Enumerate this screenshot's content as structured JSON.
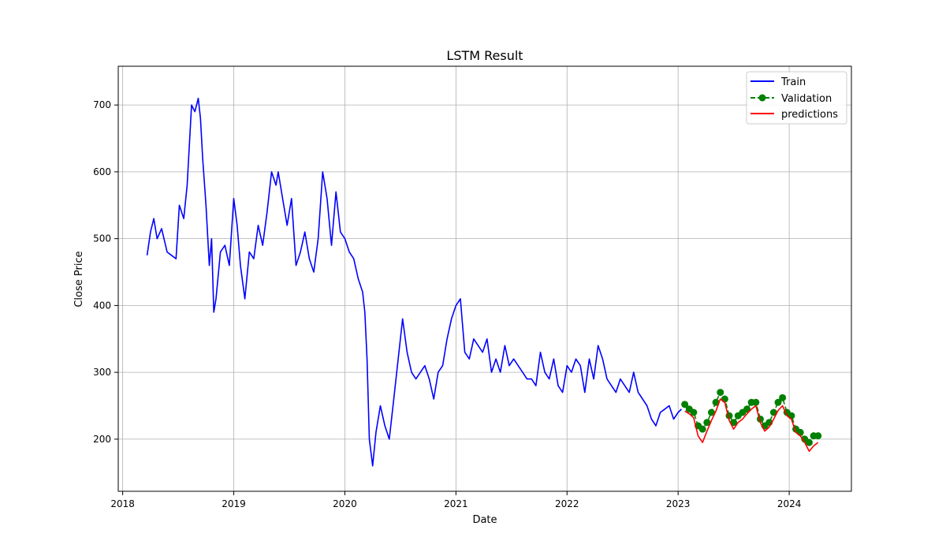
{
  "chart_data": {
    "type": "line",
    "title": "LSTM Result",
    "xlabel": "Date",
    "ylabel": "Close Price",
    "grid": true,
    "legend_placement": "top-right",
    "xlim": [
      2017.96,
      2024.56
    ],
    "ylim": [
      122,
      758
    ],
    "xticks": [
      2018,
      2019,
      2020,
      2021,
      2022,
      2023,
      2024
    ],
    "xtick_labels": [
      "2018",
      "2019",
      "2020",
      "2021",
      "2022",
      "2023",
      "2024"
    ],
    "yticks": [
      200,
      300,
      400,
      500,
      600,
      700
    ],
    "ytick_labels": [
      "200",
      "300",
      "400",
      "500",
      "600",
      "700"
    ],
    "series": [
      {
        "name": "Train",
        "color": "#0000ff",
        "style": "solid",
        "marker": "none",
        "x": [
          2018.22,
          2018.25,
          2018.28,
          2018.31,
          2018.35,
          2018.4,
          2018.44,
          2018.48,
          2018.51,
          2018.55,
          2018.58,
          2018.62,
          2018.65,
          2018.68,
          2018.7,
          2018.72,
          2018.75,
          2018.78,
          2018.8,
          2018.82,
          2018.84,
          2018.88,
          2018.92,
          2018.96,
          2019.0,
          2019.03,
          2019.06,
          2019.1,
          2019.14,
          2019.18,
          2019.22,
          2019.26,
          2019.3,
          2019.34,
          2019.38,
          2019.4,
          2019.44,
          2019.48,
          2019.52,
          2019.56,
          2019.6,
          2019.64,
          2019.68,
          2019.72,
          2019.76,
          2019.8,
          2019.84,
          2019.88,
          2019.92,
          2019.96,
          2020.0,
          2020.04,
          2020.08,
          2020.12,
          2020.16,
          2020.18,
          2020.2,
          2020.22,
          2020.25,
          2020.28,
          2020.32,
          2020.36,
          2020.4,
          2020.44,
          2020.48,
          2020.52,
          2020.56,
          2020.6,
          2020.64,
          2020.68,
          2020.72,
          2020.76,
          2020.8,
          2020.84,
          2020.88,
          2020.92,
          2020.96,
          2021.0,
          2021.04,
          2021.08,
          2021.12,
          2021.16,
          2021.2,
          2021.24,
          2021.28,
          2021.32,
          2021.36,
          2021.4,
          2021.44,
          2021.48,
          2021.52,
          2021.56,
          2021.6,
          2021.64,
          2021.68,
          2021.72,
          2021.76,
          2021.8,
          2021.84,
          2021.88,
          2021.92,
          2021.96,
          2022.0,
          2022.04,
          2022.08,
          2022.12,
          2022.16,
          2022.2,
          2022.24,
          2022.28,
          2022.32,
          2022.36,
          2022.4,
          2022.44,
          2022.48,
          2022.52,
          2022.56,
          2022.6,
          2022.64,
          2022.68,
          2022.72,
          2022.76,
          2022.8,
          2022.84,
          2022.88,
          2022.92,
          2022.96,
          2023.0,
          2023.03
        ],
        "y": [
          475,
          510,
          530,
          500,
          515,
          480,
          475,
          470,
          550,
          530,
          580,
          700,
          690,
          710,
          680,
          620,
          550,
          460,
          500,
          390,
          410,
          480,
          490,
          460,
          560,
          520,
          460,
          410,
          480,
          470,
          520,
          490,
          540,
          600,
          580,
          600,
          560,
          520,
          560,
          460,
          480,
          510,
          470,
          450,
          500,
          600,
          560,
          490,
          570,
          510,
          500,
          480,
          470,
          440,
          420,
          390,
          320,
          200,
          160,
          210,
          250,
          220,
          200,
          260,
          320,
          380,
          330,
          300,
          290,
          300,
          310,
          290,
          260,
          300,
          310,
          350,
          380,
          400,
          410,
          330,
          320,
          350,
          340,
          330,
          350,
          300,
          320,
          300,
          340,
          310,
          320,
          310,
          300,
          290,
          290,
          280,
          330,
          300,
          290,
          320,
          280,
          270,
          310,
          300,
          320,
          310,
          270,
          320,
          290,
          340,
          320,
          290,
          280,
          270,
          290,
          280,
          270,
          300,
          270,
          260,
          250,
          230,
          220,
          240,
          245,
          250,
          230,
          240,
          245
        ]
      },
      {
        "name": "Validation",
        "color": "#008000",
        "style": "dashed",
        "marker": "circle",
        "x": [
          2023.06,
          2023.1,
          2023.14,
          2023.18,
          2023.22,
          2023.26,
          2023.3,
          2023.34,
          2023.38,
          2023.42,
          2023.46,
          2023.5,
          2023.54,
          2023.58,
          2023.62,
          2023.66,
          2023.7,
          2023.74,
          2023.78,
          2023.82,
          2023.86,
          2023.9,
          2023.94,
          2023.98,
          2024.02,
          2024.06,
          2024.1,
          2024.14,
          2024.18,
          2024.22,
          2024.26
        ],
        "y": [
          252,
          245,
          240,
          220,
          215,
          225,
          240,
          255,
          270,
          260,
          235,
          225,
          235,
          240,
          245,
          255,
          255,
          230,
          220,
          225,
          240,
          255,
          262,
          240,
          235,
          215,
          210,
          200,
          195,
          205,
          205
        ]
      },
      {
        "name": "predictions",
        "color": "#ff0000",
        "style": "solid",
        "marker": "none",
        "x": [
          2023.06,
          2023.1,
          2023.14,
          2023.18,
          2023.22,
          2023.26,
          2023.3,
          2023.34,
          2023.38,
          2023.42,
          2023.46,
          2023.5,
          2023.54,
          2023.58,
          2023.62,
          2023.66,
          2023.7,
          2023.74,
          2023.78,
          2023.82,
          2023.86,
          2023.9,
          2023.94,
          2023.98,
          2024.02,
          2024.06,
          2024.1,
          2024.14,
          2024.18,
          2024.22,
          2024.26
        ],
        "y": [
          242,
          238,
          232,
          205,
          195,
          212,
          228,
          242,
          260,
          255,
          228,
          215,
          225,
          230,
          238,
          245,
          250,
          225,
          212,
          218,
          230,
          243,
          250,
          235,
          230,
          210,
          205,
          195,
          182,
          190,
          195
        ]
      }
    ]
  }
}
